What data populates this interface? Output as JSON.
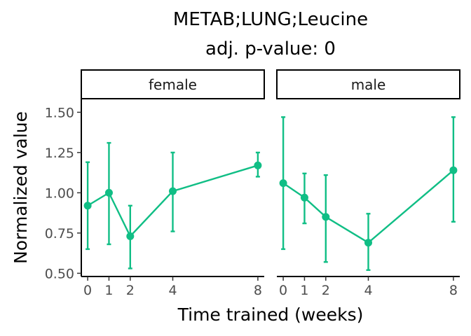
{
  "chart_data": {
    "type": "line",
    "title": "METAB;LUNG;Leucine",
    "subtitle": "adj. p-value: 0",
    "xlabel": "Time trained (weeks)",
    "ylabel": "Normalized value",
    "xlim": [
      -0.3,
      8.3
    ],
    "ylim": [
      0.48,
      1.58
    ],
    "x_ticks": [
      0,
      1,
      2,
      4,
      8
    ],
    "y_ticks": [
      0.5,
      0.75,
      1.0,
      1.25,
      1.5
    ],
    "y_tick_labels": [
      "0.50",
      "0.75",
      "1.00",
      "1.25",
      "1.50"
    ],
    "color": "#10BE85",
    "grid": false,
    "panels": [
      {
        "label": "female",
        "points": [
          {
            "x": 0,
            "y": 0.92,
            "ymin": 0.65,
            "ymax": 1.19
          },
          {
            "x": 1,
            "y": 1.0,
            "ymin": 0.68,
            "ymax": 1.31
          },
          {
            "x": 2,
            "y": 0.73,
            "ymin": 0.53,
            "ymax": 0.92
          },
          {
            "x": 4,
            "y": 1.01,
            "ymin": 0.76,
            "ymax": 1.25
          },
          {
            "x": 8,
            "y": 1.17,
            "ymin": 1.1,
            "ymax": 1.25
          }
        ]
      },
      {
        "label": "male",
        "points": [
          {
            "x": 0,
            "y": 1.06,
            "ymin": 0.65,
            "ymax": 1.47
          },
          {
            "x": 1,
            "y": 0.97,
            "ymin": 0.81,
            "ymax": 1.12
          },
          {
            "x": 2,
            "y": 0.85,
            "ymin": 0.57,
            "ymax": 1.11
          },
          {
            "x": 4,
            "y": 0.69,
            "ymin": 0.52,
            "ymax": 0.87
          },
          {
            "x": 8,
            "y": 1.14,
            "ymin": 0.82,
            "ymax": 1.47
          }
        ]
      }
    ]
  }
}
